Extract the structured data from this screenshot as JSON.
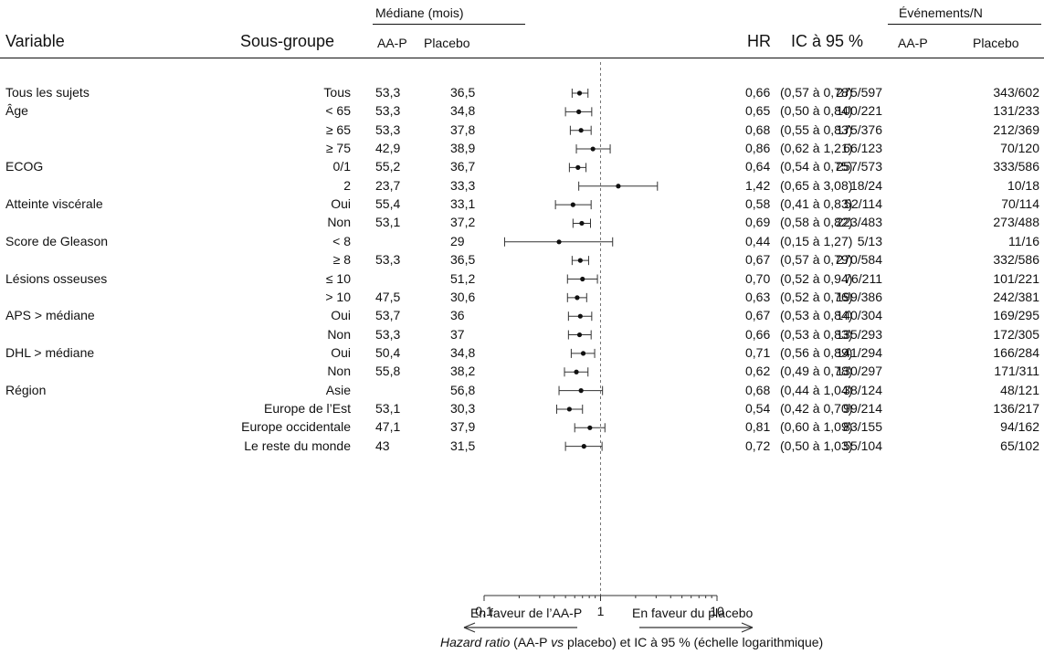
{
  "headers": {
    "variable": "Variable",
    "subgroup": "Sous-groupe",
    "median_group": "Médiane (mois)",
    "aap": "AA-P",
    "placebo": "Placebo",
    "hr": "HR",
    "ci": "IC à 95 %",
    "events_group": "Événements/N",
    "events_aap": "AA-P",
    "events_placebo": "Placebo"
  },
  "rows": [
    {
      "variable": "Tous les sujets",
      "subgroup": "Tous",
      "m_aap": "53,3",
      "m_pla": "36,5",
      "hr_text": "0,66",
      "ci_text": "(0,57 à 0,78)",
      "ev_aap": "275/597",
      "ev_pla": "343/602"
    },
    {
      "variable": "Âge",
      "subgroup": "< 65",
      "m_aap": "53,3",
      "m_pla": "34,8",
      "hr_text": "0,65",
      "ci_text": "(0,50 à 0,84)",
      "ev_aap": "100/221",
      "ev_pla": "131/233"
    },
    {
      "variable": "",
      "subgroup": "≥ 65",
      "m_aap": "53,3",
      "m_pla": "37,8",
      "hr_text": "0,68",
      "ci_text": "(0,55 à 0,83)",
      "ev_aap": "175/376",
      "ev_pla": "212/369"
    },
    {
      "variable": "",
      "subgroup": "≥ 75",
      "m_aap": "42,9",
      "m_pla": "38,9",
      "hr_text": "0,86",
      "ci_text": "(0,62 à 1,21)",
      "ev_aap": "66/123",
      "ev_pla": "70/120"
    },
    {
      "variable": "ECOG",
      "subgroup": "0/1",
      "m_aap": "55,2",
      "m_pla": "36,7",
      "hr_text": "0,64",
      "ci_text": "(0,54 à 0,75)",
      "ev_aap": "257/573",
      "ev_pla": "333/586"
    },
    {
      "variable": "",
      "subgroup": "2",
      "m_aap": "23,7",
      "m_pla": "33,3",
      "hr_text": "1,42",
      "ci_text": "(0,65 à 3,08)",
      "ev_aap": "18/24",
      "ev_pla": "10/18"
    },
    {
      "variable": "Atteinte viscérale",
      "subgroup": "Oui",
      "m_aap": "55,4",
      "m_pla": "33,1",
      "hr_text": "0,58",
      "ci_text": "(0,41 à 0,83)",
      "ev_aap": "52/114",
      "ev_pla": "70/114"
    },
    {
      "variable": "",
      "subgroup": "Non",
      "m_aap": "53,1",
      "m_pla": "37,2",
      "hr_text": "0,69",
      "ci_text": "(0,58 à 0,82)",
      "ev_aap": "223/483",
      "ev_pla": "273/488"
    },
    {
      "variable": "Score de Gleason",
      "subgroup": "< 8",
      "m_aap": "",
      "m_pla": "29",
      "hr_text": "0,44",
      "ci_text": "(0,15 à 1,27)",
      "ev_aap": "5/13",
      "ev_pla": "11/16"
    },
    {
      "variable": "",
      "subgroup": "≥ 8",
      "m_aap": "53,3",
      "m_pla": "36,5",
      "hr_text": "0,67",
      "ci_text": "(0,57 à 0,79)",
      "ev_aap": "270/584",
      "ev_pla": "332/586"
    },
    {
      "variable": "Lésions osseuses",
      "subgroup": "≤ 10",
      "m_aap": "",
      "m_pla": "51,2",
      "hr_text": "0,70",
      "ci_text": "(0,52 à 0,94)",
      "ev_aap": "76/211",
      "ev_pla": "101/221"
    },
    {
      "variable": "",
      "subgroup": "> 10",
      "m_aap": "47,5",
      "m_pla": "30,6",
      "hr_text": "0,63",
      "ci_text": "(0,52 à 0,76)",
      "ev_aap": "199/386",
      "ev_pla": "242/381"
    },
    {
      "variable": "APS > médiane",
      "subgroup": "Oui",
      "m_aap": "53,7",
      "m_pla": "36",
      "hr_text": "0,67",
      "ci_text": "(0,53 à 0,84)",
      "ev_aap": "140/304",
      "ev_pla": "169/295"
    },
    {
      "variable": "",
      "subgroup": "Non",
      "m_aap": "53,3",
      "m_pla": "37",
      "hr_text": "0,66",
      "ci_text": "(0,53 à 0,83)",
      "ev_aap": "135/293",
      "ev_pla": "172/305"
    },
    {
      "variable": "DHL > médiane",
      "subgroup": "Oui",
      "m_aap": "50,4",
      "m_pla": "34,8",
      "hr_text": "0,71",
      "ci_text": "(0,56 à 0,89)",
      "ev_aap": "141/294",
      "ev_pla": "166/284"
    },
    {
      "variable": "",
      "subgroup": "Non",
      "m_aap": "55,8",
      "m_pla": "38,2",
      "hr_text": "0,62",
      "ci_text": "(0,49 à 0,78)",
      "ev_aap": "130/297",
      "ev_pla": "171/311"
    },
    {
      "variable": "Région",
      "subgroup": "Asie",
      "m_aap": "",
      "m_pla": "56,8",
      "hr_text": "0,68",
      "ci_text": "(0,44 à 1,04)",
      "ev_aap": "38/124",
      "ev_pla": "48/121"
    },
    {
      "variable": "",
      "subgroup": "Europe de l’Est",
      "m_aap": "53,1",
      "m_pla": "30,3",
      "hr_text": "0,54",
      "ci_text": "(0,42 à 0,70)",
      "ev_aap": "99/214",
      "ev_pla": "136/217"
    },
    {
      "variable": "",
      "subgroup": "Europe occidentale",
      "m_aap": "47,1",
      "m_pla": "37,9",
      "hr_text": "0,81",
      "ci_text": "(0,60 à 1,09)",
      "ev_aap": "83/155",
      "ev_pla": "94/162"
    },
    {
      "variable": "",
      "subgroup": "Le reste du monde",
      "m_aap": "43",
      "m_pla": "31,5",
      "hr_text": "0,72",
      "ci_text": "(0,50 à 1,03)",
      "ev_aap": "55/104",
      "ev_pla": "65/102"
    }
  ],
  "axis": {
    "ticks": [
      "0,1",
      "1",
      "10"
    ],
    "favor_left": "En faveur de l’AA-P",
    "favor_right": "En faveur du placebo",
    "xlabel_italic1": "Hazard ratio",
    "xlabel_part2": " (AA-P ",
    "xlabel_italic2": "vs",
    "xlabel_part3": " placebo) et IC à 95 % (échelle logarithmique)"
  },
  "chart_data": {
    "type": "forest",
    "scale": "log",
    "xlim": [
      0.1,
      10
    ],
    "reference_line": 1,
    "categories": [
      "Tous",
      "< 65",
      "≥ 65",
      "≥ 75",
      "0/1",
      "2",
      "Oui",
      "Non",
      "< 8",
      "≥ 8",
      "≤ 10",
      "> 10",
      "Oui",
      "Non",
      "Oui",
      "Non",
      "Asie",
      "Europe de l’Est",
      "Europe occidentale",
      "Le reste du monde"
    ],
    "hr": [
      0.66,
      0.65,
      0.68,
      0.86,
      0.64,
      1.42,
      0.58,
      0.69,
      0.44,
      0.67,
      0.7,
      0.63,
      0.67,
      0.66,
      0.71,
      0.62,
      0.68,
      0.54,
      0.81,
      0.72
    ],
    "ci_low": [
      0.57,
      0.5,
      0.55,
      0.62,
      0.54,
      0.65,
      0.41,
      0.58,
      0.15,
      0.57,
      0.52,
      0.52,
      0.53,
      0.53,
      0.56,
      0.49,
      0.44,
      0.42,
      0.6,
      0.5
    ],
    "ci_high": [
      0.78,
      0.84,
      0.83,
      1.21,
      0.75,
      3.08,
      0.83,
      0.82,
      1.27,
      0.79,
      0.94,
      0.76,
      0.84,
      0.83,
      0.89,
      0.78,
      1.04,
      0.7,
      1.09,
      1.03
    ]
  }
}
